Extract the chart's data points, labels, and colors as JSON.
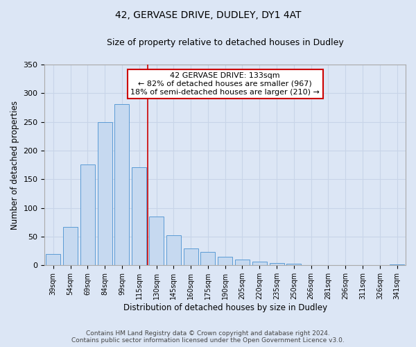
{
  "title": "42, GERVASE DRIVE, DUDLEY, DY1 4AT",
  "subtitle": "Size of property relative to detached houses in Dudley",
  "xlabel": "Distribution of detached houses by size in Dudley",
  "ylabel": "Number of detached properties",
  "footer_lines": [
    "Contains HM Land Registry data © Crown copyright and database right 2024.",
    "Contains public sector information licensed under the Open Government Licence v3.0."
  ],
  "bar_labels": [
    "39sqm",
    "54sqm",
    "69sqm",
    "84sqm",
    "99sqm",
    "115sqm",
    "130sqm",
    "145sqm",
    "160sqm",
    "175sqm",
    "190sqm",
    "205sqm",
    "220sqm",
    "235sqm",
    "250sqm",
    "266sqm",
    "281sqm",
    "296sqm",
    "311sqm",
    "326sqm",
    "341sqm"
  ],
  "bar_values": [
    20,
    67,
    176,
    249,
    281,
    171,
    85,
    52,
    29,
    23,
    15,
    10,
    6,
    4,
    3,
    1,
    0,
    0,
    0,
    0,
    2
  ],
  "bar_color": "#c6d9f0",
  "bar_edge_color": "#5b9bd5",
  "grid_color": "#c8d4e8",
  "background_color": "#dce6f5",
  "vline_x_index": 6,
  "vline_color": "#cc0000",
  "annotation_text": "42 GERVASE DRIVE: 133sqm\n← 82% of detached houses are smaller (967)\n18% of semi-detached houses are larger (210) →",
  "annotation_box_color": "#ffffff",
  "annotation_box_edge_color": "#cc0000",
  "ylim": [
    0,
    350
  ],
  "yticks": [
    0,
    50,
    100,
    150,
    200,
    250,
    300,
    350
  ]
}
